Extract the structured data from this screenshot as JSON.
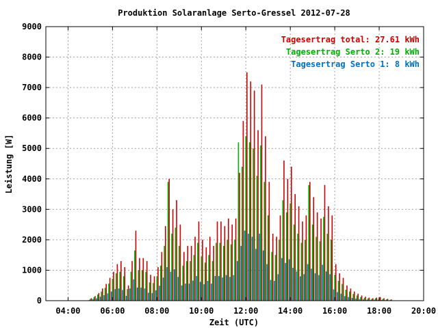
{
  "chart_data": {
    "type": "bar",
    "title": "Produktion Solaranlage Serto-Gressel 2012-07-28",
    "xlabel": "Zeit (UTC)",
    "ylabel": "Leistung [W]",
    "ylim": [
      0,
      9000
    ],
    "yticks": [
      "0",
      "1000",
      "2000",
      "3000",
      "4000",
      "5000",
      "6000",
      "7000",
      "8000",
      "9000"
    ],
    "xlim": [
      "03:00",
      "20:00"
    ],
    "xticks": [
      "04:00",
      "06:00",
      "08:00",
      "10:00",
      "12:00",
      "14:00",
      "16:00",
      "18:00",
      "20:00"
    ],
    "grid": true,
    "legend": "top-right",
    "colors": {
      "total": "#cc0000",
      "serto2": "#00b000",
      "serto1": "#0070c0"
    },
    "legend_entries": [
      {
        "key": "total",
        "label": "Tagesertrag total: 27.61 kWh"
      },
      {
        "key": "serto2",
        "label": "Tagesertrag Serto 2: 19 kWh"
      },
      {
        "key": "serto1",
        "label": "Tagesertrag Serto 1: 8 kWh"
      }
    ],
    "x": [
      "05:00",
      "05:10",
      "05:20",
      "05:30",
      "05:40",
      "05:50",
      "06:00",
      "06:10",
      "06:20",
      "06:30",
      "06:40",
      "06:50",
      "07:00",
      "07:10",
      "07:20",
      "07:30",
      "07:40",
      "07:50",
      "08:00",
      "08:10",
      "08:20",
      "08:30",
      "08:40",
      "08:50",
      "09:00",
      "09:10",
      "09:20",
      "09:30",
      "09:40",
      "09:50",
      "10:00",
      "10:10",
      "10:20",
      "10:30",
      "10:40",
      "10:50",
      "11:00",
      "11:10",
      "11:20",
      "11:30",
      "11:40",
      "11:50",
      "12:00",
      "12:10",
      "12:20",
      "12:30",
      "12:40",
      "12:50",
      "13:00",
      "13:10",
      "13:20",
      "13:30",
      "13:40",
      "13:50",
      "14:00",
      "14:10",
      "14:20",
      "14:30",
      "14:40",
      "14:50",
      "15:00",
      "15:10",
      "15:20",
      "15:30",
      "15:40",
      "15:50",
      "16:00",
      "16:10",
      "16:20",
      "16:30",
      "16:40",
      "16:50",
      "17:00",
      "17:10",
      "17:20",
      "17:30",
      "17:40",
      "17:50",
      "18:00",
      "18:10",
      "18:20",
      "18:30"
    ],
    "series": [
      {
        "name": "total",
        "values": [
          80,
          150,
          250,
          400,
          550,
          750,
          950,
          1200,
          1300,
          1100,
          500,
          1300,
          2300,
          1400,
          1400,
          1300,
          850,
          800,
          1100,
          1600,
          2450,
          4000,
          3000,
          3300,
          2500,
          1600,
          1800,
          1800,
          2100,
          2600,
          2000,
          1750,
          2100,
          1800,
          2600,
          2600,
          2450,
          2700,
          2500,
          2700,
          4200,
          5900,
          7500,
          7200,
          6900,
          5600,
          7100,
          5400,
          3900,
          2200,
          2100,
          2800,
          4600,
          4000,
          4400,
          3500,
          3100,
          2600,
          2800,
          3900,
          3400,
          2900,
          2700,
          3800,
          3100,
          2800,
          1200,
          900,
          750,
          500,
          400,
          300,
          230,
          170,
          130,
          100,
          80,
          100,
          120,
          80,
          60,
          40
        ]
      },
      {
        "name": "serto2",
        "values": [
          60,
          120,
          200,
          300,
          420,
          560,
          720,
          900,
          950,
          800,
          380,
          950,
          1650,
          1000,
          1000,
          950,
          600,
          580,
          800,
          1150,
          1800,
          3900,
          2200,
          2400,
          1800,
          1150,
          1300,
          1300,
          1500,
          1900,
          1450,
          1250,
          1500,
          1300,
          1900,
          1900,
          1800,
          2000,
          1850,
          2000,
          5200,
          4400,
          5400,
          5200,
          5000,
          4100,
          5100,
          3900,
          2800,
          1600,
          1500,
          2000,
          3300,
          2900,
          3200,
          2500,
          2200,
          1900,
          2000,
          3800,
          2500,
          2100,
          1950,
          2750,
          2200,
          2000,
          850,
          650,
          550,
          360,
          300,
          220,
          170,
          120,
          95,
          75,
          60,
          75,
          90,
          60,
          45,
          30
        ]
      },
      {
        "name": "serto1",
        "values": [
          20,
          50,
          80,
          130,
          180,
          240,
          300,
          380,
          400,
          350,
          160,
          400,
          700,
          430,
          430,
          400,
          260,
          250,
          340,
          490,
          760,
          1100,
          950,
          1030,
          780,
          500,
          560,
          560,
          660,
          810,
          620,
          540,
          650,
          560,
          810,
          810,
          760,
          840,
          780,
          840,
          1300,
          1800,
          2300,
          2200,
          2100,
          1700,
          2200,
          1650,
          1200,
          680,
          650,
          870,
          1400,
          1240,
          1360,
          1080,
          960,
          800,
          870,
          1200,
          1050,
          900,
          840,
          1180,
          960,
          870,
          370,
          280,
          230,
          150,
          120,
          90,
          70,
          50,
          40,
          30,
          25,
          30,
          35,
          25,
          18,
          12
        ]
      }
    ]
  }
}
